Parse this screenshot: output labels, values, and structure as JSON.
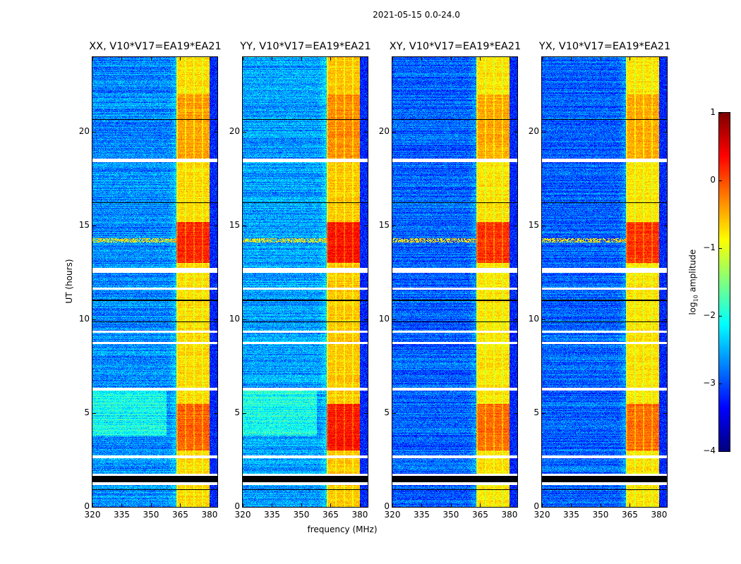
{
  "suptitle": "2021-05-15 0.0-24.0",
  "chart_data": {
    "type": "heatmap",
    "xlabel": "frequency (MHz)",
    "ylabel": "UT (hours)",
    "xlim": [
      320,
      384
    ],
    "ylim": [
      0,
      24
    ],
    "xticks": [
      "320",
      "335",
      "350",
      "365",
      "380"
    ],
    "xtick_values": [
      320,
      335,
      350,
      365,
      380
    ],
    "yticks": [
      "0",
      "5",
      "10",
      "15",
      "20"
    ],
    "ytick_values": [
      0,
      5,
      10,
      15,
      20
    ],
    "colorbar": {
      "label_main": "log",
      "label_sub": "10",
      "label_rest": " amplitude",
      "range": [
        -4,
        1
      ],
      "ticks": [
        "1",
        "0",
        "−1",
        "−2",
        "−3",
        "−4"
      ],
      "tick_values": [
        1,
        0,
        -1,
        -2,
        -3,
        -4
      ],
      "colormap": "jet"
    },
    "panels": [
      {
        "title": "XX, V10*V17=EA19*EA21",
        "background_level": -2.7,
        "band_level": -0.7,
        "low_uv_excess": true
      },
      {
        "title": "YY, V10*V17=EA19*EA21",
        "background_level": -2.6,
        "band_level": -0.6,
        "low_uv_excess": true
      },
      {
        "title": "XY, V10*V17=EA19*EA21",
        "background_level": -2.9,
        "band_level": -0.75,
        "low_uv_excess": false
      },
      {
        "title": "YX, V10*V17=EA19*EA21",
        "background_level": -2.9,
        "band_level": -0.75,
        "low_uv_excess": false
      }
    ],
    "rfi_band_mhz": [
      363,
      380
    ],
    "rfi_strong_hours": [
      [
        13.0,
        15.2
      ],
      [
        3.0,
        5.5
      ]
    ],
    "flagged_hours_white": [
      [
        1.15,
        1.3
      ],
      [
        1.65,
        1.75
      ],
      [
        2.6,
        2.75
      ],
      [
        6.2,
        6.35
      ],
      [
        8.7,
        8.8
      ],
      [
        9.3,
        9.4
      ],
      [
        11.6,
        11.7
      ],
      [
        12.5,
        12.75
      ],
      [
        18.4,
        18.6
      ]
    ],
    "flagged_hours_black": [
      [
        1.3,
        1.65
      ],
      [
        0.9,
        0.95
      ],
      [
        9.85,
        9.9
      ],
      [
        11.0,
        11.05
      ],
      [
        16.2,
        16.25
      ],
      [
        20.65,
        20.7
      ]
    ]
  }
}
